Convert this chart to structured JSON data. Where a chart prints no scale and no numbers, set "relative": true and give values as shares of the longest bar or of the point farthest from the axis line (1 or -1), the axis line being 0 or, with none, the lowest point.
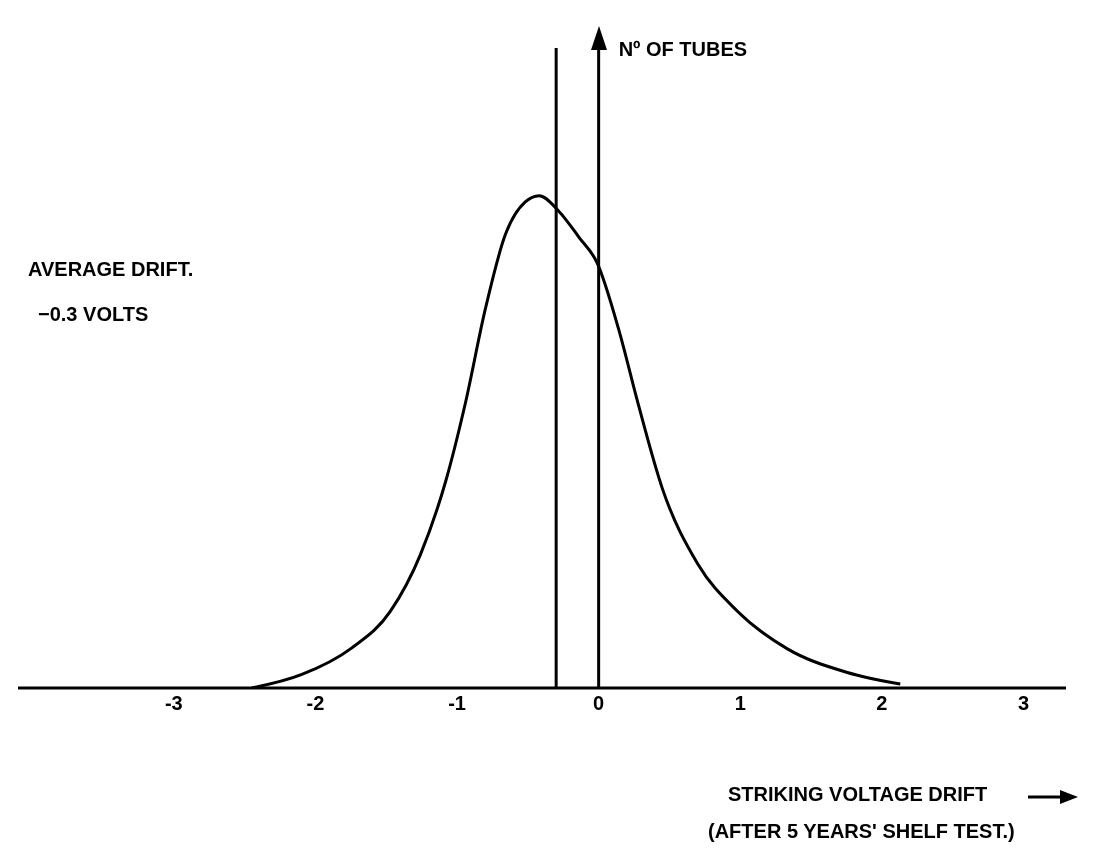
{
  "chart_data": {
    "type": "line",
    "relative": true,
    "xlabel": "STRIKING VOLTAGE DRIFT",
    "annotations": [
      "Nº OF TUBES",
      "AVERAGE DRIFT.",
      "−0.3 VOLTS",
      "(AFTER 5 YEARS' SHELF TEST.)"
    ],
    "xlim": [
      -4.1,
      3.3
    ],
    "xticks": [
      -3,
      -2,
      -1,
      0,
      1,
      2,
      3
    ],
    "marker": "none",
    "line_style": "solid",
    "ref_lines": [
      {
        "axis": "x",
        "value": -0.3,
        "color": "#000000"
      },
      {
        "axis": "x",
        "value": 0,
        "color": "#000000"
      }
    ],
    "series": [
      {
        "color": "#000000",
        "x": [
          -2.45,
          -2.1,
          -1.75,
          -1.47,
          -1.26,
          -1.08,
          -0.94,
          -0.8,
          -0.66,
          -0.52,
          -0.42,
          -0.28,
          -0.14,
          -0.01,
          0.14,
          0.28,
          0.45,
          0.7,
          0.98,
          1.33,
          1.75,
          2.13
        ],
        "values": [
          0,
          0.027,
          0.08,
          0.156,
          0.27,
          0.42,
          0.58,
          0.77,
          0.92,
          0.987,
          1,
          0.968,
          0.916,
          0.863,
          0.73,
          0.576,
          0.405,
          0.252,
          0.156,
          0.08,
          0.032,
          0.008
        ]
      }
    ]
  }
}
